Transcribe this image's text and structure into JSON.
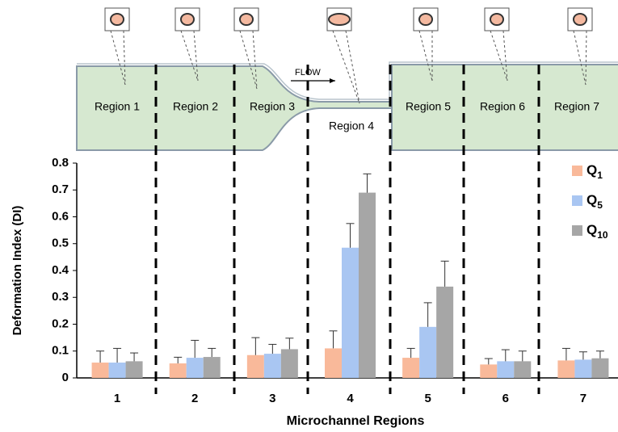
{
  "diagram": {
    "regions": [
      "Region 1",
      "Region 2",
      "Region 3",
      "Region 4",
      "Region 5",
      "Region 6",
      "Region 7"
    ],
    "flow_label": "FLOW"
  },
  "chart_data": {
    "type": "bar",
    "y_label": "Deformation Index (DI)",
    "x_label": "Microchannel  Regions",
    "categories": [
      "1",
      "2",
      "3",
      "4",
      "5",
      "6",
      "7"
    ],
    "series": [
      {
        "name": "Q",
        "name_subscript": "1",
        "color": "#f9b99a",
        "values": [
          0.057,
          0.054,
          0.085,
          0.11,
          0.075,
          0.05,
          0.065
        ],
        "errors": [
          0.043,
          0.023,
          0.065,
          0.065,
          0.035,
          0.022,
          0.045
        ]
      },
      {
        "name": "Q",
        "name_subscript": "5",
        "color": "#a9c6f2",
        "values": [
          0.057,
          0.075,
          0.09,
          0.485,
          0.19,
          0.062,
          0.068
        ],
        "errors": [
          0.053,
          0.065,
          0.035,
          0.09,
          0.09,
          0.043,
          0.029
        ]
      },
      {
        "name": "Q",
        "name_subscript": "10",
        "color": "#a6a6a6",
        "values": [
          0.062,
          0.078,
          0.107,
          0.69,
          0.34,
          0.062,
          0.073
        ],
        "errors": [
          0.031,
          0.032,
          0.041,
          0.07,
          0.095,
          0.038,
          0.027
        ]
      }
    ],
    "ylim": [
      0,
      0.8
    ],
    "yticks": [
      0,
      0.1,
      0.2,
      0.3,
      0.4,
      0.5,
      0.6,
      0.7,
      0.8
    ],
    "grid": false,
    "legend": "upper right"
  }
}
